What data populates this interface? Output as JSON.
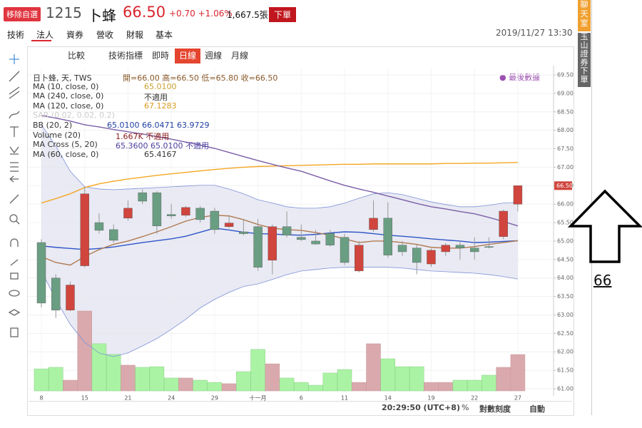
{
  "ui": {
    "header": {
      "remove": "移除自選",
      "code": "1215",
      "name": "卜蜂",
      "price": "66.50",
      "change": "+0.70 +1.06%",
      "volume": "1,667.5張",
      "order": "下單"
    },
    "tabs": [
      "技術",
      "法人",
      "資券",
      "營收",
      "財報",
      "基本"
    ],
    "datetime": "2019/11/27 13:30",
    "toolbar": [
      "比較",
      "技術指標",
      "即時",
      "日線",
      "週線",
      "月線"
    ],
    "legend": [
      [
        "日卜蜂, 天, TWS",
        "開=66.00 高=66.50 低=65.80 收=66.50"
      ],
      [
        "MA (10, close, 0)",
        "65.0100"
      ],
      [
        "MA (240, close, 0)",
        "不適用"
      ],
      [
        "MA (120, close, 0)",
        "67.1283"
      ],
      [
        "SAR (0.02, 0.02, 0.2)",
        ""
      ],
      [
        "BB (20, 2)",
        "65.0100 66.0471 63.9729"
      ],
      [
        "Volume (20)",
        "1.667K 不適用"
      ],
      [
        "MA Cross (5, 20)",
        "65.3600 65.0100 不適用"
      ],
      [
        "MA (60, close, 0)",
        "65.4167"
      ]
    ],
    "last_data": "● 最後數據",
    "status": {
      "time": "20:29:50 (UTC+8)",
      "percent": "%",
      "log": "對數刻度",
      "auto": "自動"
    },
    "side": {
      "chat": "聊天室",
      "broker": "玉山證券下單"
    },
    "annotation": "66"
  },
  "chart_data": {
    "type": "candlestick",
    "categories": [
      "8",
      null,
      null,
      "15",
      null,
      null,
      "21",
      null,
      null,
      "24",
      null,
      null,
      "29",
      null,
      null,
      "十一月",
      null,
      null,
      "6",
      null,
      null,
      "11",
      null,
      null,
      "14",
      null,
      null,
      "19",
      null,
      null,
      "22",
      null,
      null,
      "27"
    ],
    "series": {
      "open": [
        64.96,
        64.0,
        63.13,
        64.33,
        65.5,
        65.31,
        65.62,
        66.31,
        66.31,
        65.72,
        65.7,
        65.89,
        65.81,
        65.39,
        65.25,
        65.39,
        64.48,
        65.39,
        65.1,
        65.0,
        65.21,
        65.1,
        64.19,
        65.31,
        65.62,
        64.89,
        64.81,
        64.38,
        64.71,
        64.89,
        64.81,
        64.85,
        65.12,
        66.0
      ],
      "high": [
        65.05,
        64.1,
        63.9,
        66.47,
        65.75,
        65.45,
        66.1,
        66.4,
        66.35,
        66.0,
        65.95,
        65.95,
        65.9,
        65.7,
        65.6,
        65.6,
        65.45,
        65.8,
        65.45,
        65.3,
        65.3,
        65.2,
        65.0,
        66.1,
        66.05,
        65.0,
        64.9,
        64.8,
        64.95,
        65.0,
        65.1,
        65.1,
        65.85,
        66.5
      ],
      "low": [
        63.2,
        62.92,
        63.1,
        64.29,
        65.2,
        64.95,
        65.55,
        66.0,
        65.2,
        65.6,
        65.65,
        65.5,
        65.2,
        65.35,
        65.15,
        64.2,
        64.1,
        65.1,
        65.0,
        64.9,
        64.85,
        64.35,
        64.15,
        65.25,
        64.55,
        64.6,
        64.1,
        64.3,
        64.6,
        64.5,
        64.5,
        64.8,
        65.05,
        65.8
      ],
      "close": [
        63.32,
        63.13,
        63.81,
        66.28,
        65.29,
        65.02,
        65.89,
        66.08,
        65.41,
        65.68,
        65.91,
        65.58,
        65.31,
        65.49,
        65.2,
        64.29,
        65.39,
        65.16,
        65.04,
        64.92,
        64.89,
        64.42,
        64.89,
        65.62,
        64.62,
        64.71,
        64.42,
        64.75,
        64.89,
        64.81,
        64.71,
        64.83,
        65.81,
        66.5
      ],
      "volume": [
        1.01,
        1.08,
        0.49,
        3.66,
        2.16,
        1.67,
        1.18,
        1.08,
        1.11,
        0.59,
        0.59,
        0.49,
        0.39,
        0.33,
        0.88,
        1.9,
        1.24,
        0.59,
        0.39,
        0.26,
        0.82,
        0.98,
        0.39,
        2.16,
        1.47,
        1.11,
        1.11,
        0.39,
        0.39,
        0.49,
        0.49,
        0.72,
        1.08,
        1.667
      ]
    },
    "up_color": "#d0453d",
    "down_color": "#6a9e83",
    "vol_up_color": "#d9a9ad",
    "vol_down_color": "#abf3a4",
    "overlays": [
      {
        "color": "#7f92d8",
        "values": [
          68.15,
          67.57,
          66.89,
          66.47,
          66.41,
          66.39,
          66.41,
          66.43,
          66.45,
          66.47,
          66.49,
          66.51,
          66.51,
          66.41,
          66.28,
          66.12,
          66.03,
          65.93,
          65.89,
          65.89,
          65.93,
          66.03,
          66.16,
          66.28,
          66.31,
          66.26,
          66.16,
          66.06,
          65.99,
          65.93,
          65.93,
          65.97,
          66.03,
          66.05
        ]
      },
      {
        "color": "#7f92d8",
        "values": [
          64.19,
          63.42,
          62.74,
          62.26,
          61.97,
          61.87,
          61.97,
          62.16,
          62.36,
          62.61,
          62.88,
          63.19,
          63.42,
          63.61,
          63.77,
          63.84,
          63.96,
          64.09,
          64.19,
          64.23,
          64.27,
          64.29,
          64.29,
          64.29,
          64.29,
          64.27,
          64.23,
          64.19,
          64.17,
          64.15,
          64.13,
          64.09,
          64.04,
          63.97
        ]
      },
      {
        "color": "#f5a623",
        "values": [
          66.03,
          66.15,
          66.28,
          66.45,
          66.55,
          66.62,
          66.68,
          66.73,
          66.78,
          66.82,
          66.86,
          66.9,
          66.94,
          66.97,
          67.0,
          67.02,
          67.03,
          67.04,
          67.05,
          67.06,
          67.07,
          67.08,
          67.08,
          67.09,
          67.09,
          67.09,
          67.09,
          67.09,
          67.1,
          67.1,
          67.11,
          67.11,
          67.12,
          67.13
        ]
      },
      {
        "color": "#7b5ea7",
        "values": [
          68.4,
          68.33,
          68.25,
          68.15,
          68.09,
          68.02,
          67.96,
          67.9,
          67.83,
          67.76,
          67.68,
          67.6,
          67.51,
          67.4,
          67.29,
          67.18,
          67.08,
          66.98,
          66.89,
          66.76,
          66.63,
          66.51,
          66.41,
          66.32,
          66.22,
          66.12,
          66.02,
          65.93,
          65.87,
          65.8,
          65.74,
          65.64,
          65.53,
          65.41
        ]
      },
      {
        "color": "#2e55c9",
        "values": [
          64.87,
          64.83,
          64.8,
          64.77,
          64.8,
          64.84,
          64.9,
          64.96,
          65.01,
          65.06,
          65.13,
          65.24,
          65.35,
          65.3,
          65.24,
          65.2,
          65.19,
          65.17,
          65.16,
          65.18,
          65.22,
          65.25,
          65.24,
          65.2,
          65.16,
          65.13,
          65.1,
          65.06,
          65.03,
          65.0,
          64.96,
          64.97,
          64.99,
          65.01
        ]
      },
      {
        "color": "#b07a50",
        "values": [
          64.58,
          64.42,
          64.35,
          64.58,
          64.77,
          64.91,
          65.0,
          65.12,
          65.25,
          65.39,
          65.54,
          65.64,
          65.7,
          65.68,
          65.58,
          65.45,
          65.35,
          65.31,
          65.29,
          65.23,
          65.16,
          65.06,
          64.96,
          65.0,
          65.0,
          64.96,
          64.91,
          64.83,
          64.81,
          64.81,
          64.85,
          64.91,
          64.96,
          65.01
        ]
      }
    ],
    "band_color": "#e4e5f0",
    "last_price_label": "66.50",
    "ylim": [
      61,
      69.5
    ],
    "yticks": [
      {
        "value": 61,
        "label": "61.00"
      },
      {
        "value": 61.5,
        "label": "61.50"
      },
      {
        "value": 62,
        "label": "62.00"
      },
      {
        "value": 62.5,
        "label": "62.50"
      },
      {
        "value": 63,
        "label": "63.00"
      },
      {
        "value": 63.5,
        "label": "63.50"
      },
      {
        "value": 64,
        "label": "64.00"
      },
      {
        "value": 64.5,
        "label": "64.50"
      },
      {
        "value": 65,
        "label": "65.00"
      },
      {
        "value": 65.5,
        "label": "65.50"
      },
      {
        "value": 66,
        "label": "66.00"
      },
      {
        "value": 66.5,
        "label": "66.50"
      },
      {
        "value": 67,
        "label": "67.00"
      },
      {
        "value": 67.5,
        "label": "67.50"
      },
      {
        "value": 68,
        "label": "68.00"
      },
      {
        "value": 68.5,
        "label": "68.50"
      },
      {
        "value": 69,
        "label": "69.00"
      },
      {
        "value": 69.5,
        "label": "69.50"
      }
    ],
    "grid": true
  }
}
